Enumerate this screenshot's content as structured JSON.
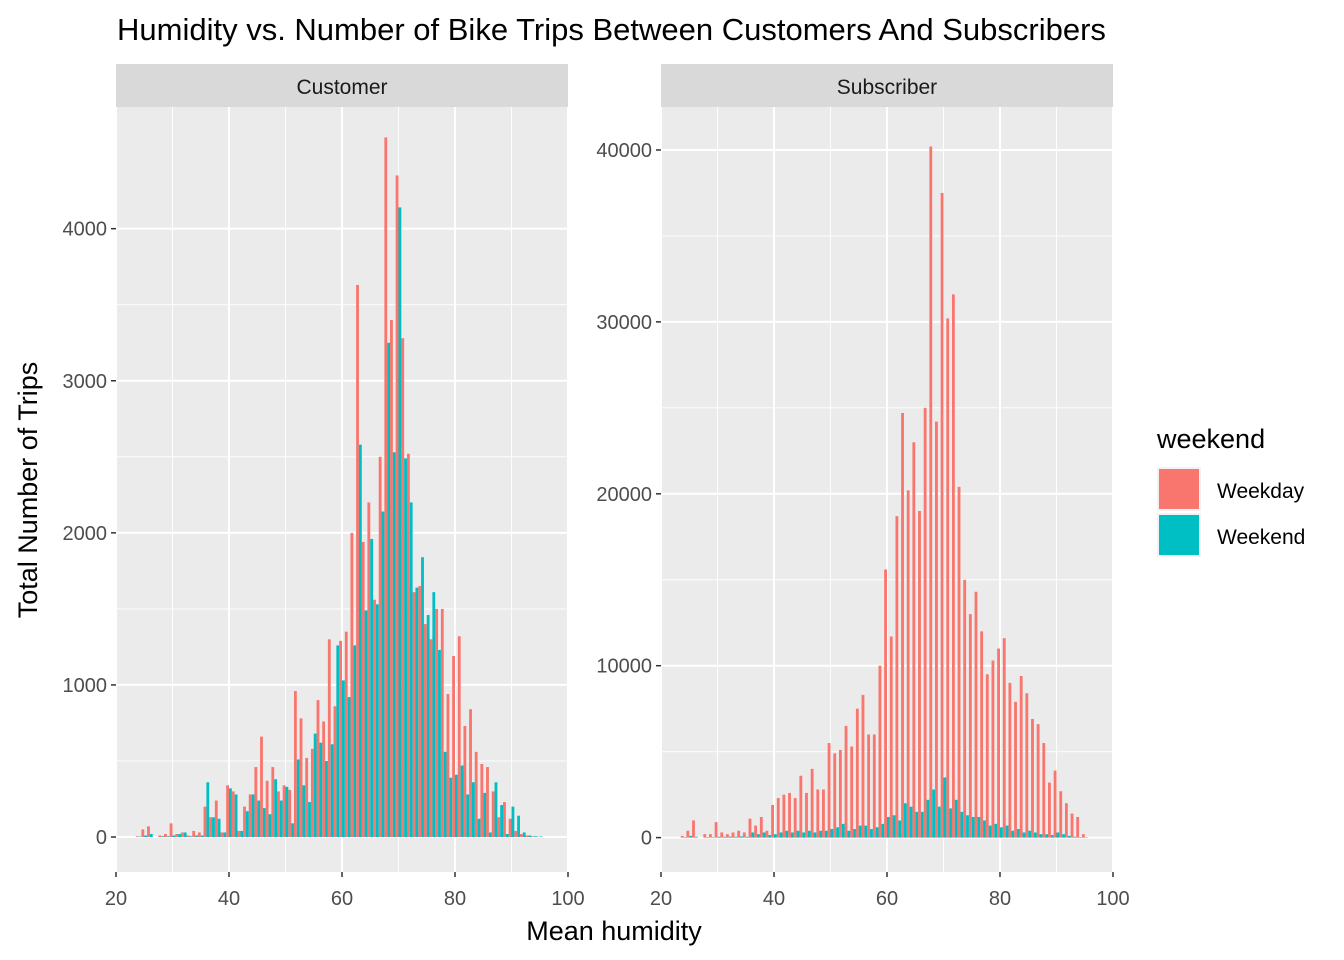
{
  "chart_data": {
    "type": "bar",
    "title": "Humidity vs. Number of Bike Trips Between Customers And Subscribers",
    "xlabel": "Mean humidity",
    "ylabel": "Total Number of Trips",
    "legend": {
      "title": "weekend",
      "position": "right",
      "entries": [
        {
          "name": "Weekday",
          "color": "#F8766D"
        },
        {
          "name": "Weekend",
          "color": "#00BFC4"
        }
      ]
    },
    "x_ticks": [
      20,
      40,
      60,
      80,
      100
    ],
    "xlim": [
      20,
      100
    ],
    "bar_width": 1,
    "dodge": true,
    "panels": [
      {
        "strip": "Customer",
        "ylim": [
          -230,
          4800
        ],
        "y_ticks": [
          0,
          1000,
          2000,
          3000,
          4000
        ],
        "series": [
          {
            "name": "Weekday",
            "x": [
              24,
              25,
              26,
              28,
              29,
              30,
              31,
              32,
              33,
              34,
              35,
              36,
              37,
              38,
              39,
              40,
              41,
              42,
              43,
              44,
              45,
              46,
              47,
              48,
              49,
              50,
              51,
              52,
              53,
              54,
              55,
              56,
              57,
              58,
              59,
              60,
              61,
              62,
              63,
              64,
              65,
              66,
              67,
              68,
              69,
              70,
              71,
              72,
              73,
              74,
              75,
              76,
              77,
              78,
              79,
              80,
              81,
              82,
              83,
              84,
              85,
              86,
              87,
              88,
              89,
              90,
              91,
              92,
              93,
              94,
              95
            ],
            "values": [
              5,
              50,
              70,
              10,
              20,
              90,
              20,
              30,
              10,
              40,
              30,
              200,
              130,
              240,
              30,
              340,
              300,
              40,
              200,
              280,
              460,
              660,
              370,
              460,
              300,
              340,
              310,
              960,
              780,
              520,
              580,
              900,
              760,
              1300,
              860,
              1290,
              1350,
              2000,
              3630,
              1940,
              2200,
              1560,
              2500,
              4600,
              3400,
              4350,
              3280,
              2520,
              1610,
              1650,
              1400,
              1300,
              1500,
              1500,
              940,
              1190,
              1320,
              730,
              840,
              560,
              480,
              460,
              300,
              130,
              230,
              120,
              40,
              20,
              10,
              5,
              3
            ]
          },
          {
            "name": "Weekend",
            "x": [
              24,
              25,
              26,
              28,
              29,
              30,
              31,
              32,
              33,
              34,
              35,
              36,
              37,
              38,
              39,
              40,
              41,
              42,
              43,
              44,
              45,
              46,
              47,
              48,
              49,
              50,
              51,
              52,
              53,
              54,
              55,
              56,
              57,
              58,
              59,
              60,
              61,
              62,
              63,
              64,
              65,
              66,
              67,
              68,
              69,
              70,
              71,
              72,
              73,
              74,
              75,
              76,
              77,
              78,
              79,
              80,
              81,
              82,
              83,
              84,
              85,
              86,
              87,
              88,
              89,
              90,
              91,
              92,
              93,
              94,
              95
            ],
            "values": [
              3,
              10,
              20,
              5,
              5,
              10,
              20,
              30,
              5,
              10,
              10,
              360,
              130,
              120,
              30,
              320,
              280,
              40,
              170,
              280,
              240,
              190,
              150,
              380,
              240,
              330,
              90,
              510,
              340,
              230,
              680,
              620,
              500,
              610,
              1260,
              1030,
              920,
              1260,
              2580,
              1490,
              1960,
              1530,
              2140,
              3250,
              2530,
              4140,
              2490,
              2200,
              1640,
              1840,
              1460,
              1610,
              1230,
              560,
              390,
              410,
              470,
              280,
              360,
              120,
              290,
              30,
              360,
              210,
              20,
              200,
              140,
              30,
              10,
              5,
              3
            ]
          }
        ]
      },
      {
        "strip": "Subscriber",
        "ylim": [
          -2000,
          42500
        ],
        "y_ticks": [
          0,
          10000,
          20000,
          30000,
          40000
        ],
        "series": [
          {
            "name": "Weekday",
            "x": [
              24,
              25,
              26,
              28,
              29,
              30,
              31,
              32,
              33,
              34,
              35,
              36,
              37,
              38,
              39,
              40,
              41,
              42,
              43,
              44,
              45,
              46,
              47,
              48,
              49,
              50,
              51,
              52,
              53,
              54,
              55,
              56,
              57,
              58,
              59,
              60,
              61,
              62,
              63,
              64,
              65,
              66,
              67,
              68,
              69,
              70,
              71,
              72,
              73,
              74,
              75,
              76,
              77,
              78,
              79,
              80,
              81,
              82,
              83,
              84,
              85,
              86,
              87,
              88,
              89,
              90,
              91,
              92,
              93,
              94,
              95
            ],
            "values": [
              100,
              400,
              1000,
              200,
              200,
              900,
              300,
              200,
              300,
              400,
              300,
              1100,
              700,
              1200,
              400,
              1900,
              2300,
              2500,
              2600,
              2300,
              3600,
              2600,
              4000,
              2800,
              2800,
              5500,
              4900,
              5100,
              6500,
              5300,
              7500,
              8300,
              6000,
              6000,
              10000,
              15600,
              11700,
              18700,
              24700,
              20200,
              23000,
              19000,
              25000,
              40200,
              24200,
              37500,
              30200,
              31600,
              20400,
              15000,
              13000,
              14300,
              12000,
              9500,
              10300,
              11000,
              11600,
              9000,
              7900,
              9400,
              8400,
              6900,
              6600,
              5500,
              3200,
              3900,
              2700,
              2000,
              1400,
              1200,
              200
            ]
          },
          {
            "name": "Weekend",
            "x": [
              24,
              25,
              26,
              28,
              29,
              30,
              31,
              32,
              33,
              34,
              35,
              36,
              37,
              38,
              39,
              40,
              41,
              42,
              43,
              44,
              45,
              46,
              47,
              48,
              49,
              50,
              51,
              52,
              53,
              54,
              55,
              56,
              57,
              58,
              59,
              60,
              61,
              62,
              63,
              64,
              65,
              66,
              67,
              68,
              69,
              70,
              71,
              72,
              73,
              74,
              75,
              76,
              77,
              78,
              79,
              80,
              81,
              82,
              83,
              84,
              85,
              86,
              87,
              88,
              89,
              90,
              91,
              92,
              93,
              94,
              95
            ],
            "values": [
              30,
              100,
              50,
              30,
              30,
              50,
              50,
              60,
              50,
              70,
              50,
              300,
              200,
              300,
              150,
              200,
              300,
              400,
              300,
              400,
              300,
              400,
              300,
              400,
              400,
              500,
              600,
              800,
              400,
              500,
              700,
              700,
              500,
              600,
              800,
              1200,
              1300,
              1000,
              2000,
              1800,
              1500,
              1500,
              2200,
              2800,
              1800,
              3500,
              1700,
              2200,
              1500,
              1300,
              1200,
              1200,
              1000,
              700,
              800,
              600,
              700,
              400,
              500,
              300,
              400,
              300,
              200,
              200,
              150,
              300,
              200,
              100,
              50,
              30,
              10
            ]
          }
        ]
      }
    ]
  }
}
